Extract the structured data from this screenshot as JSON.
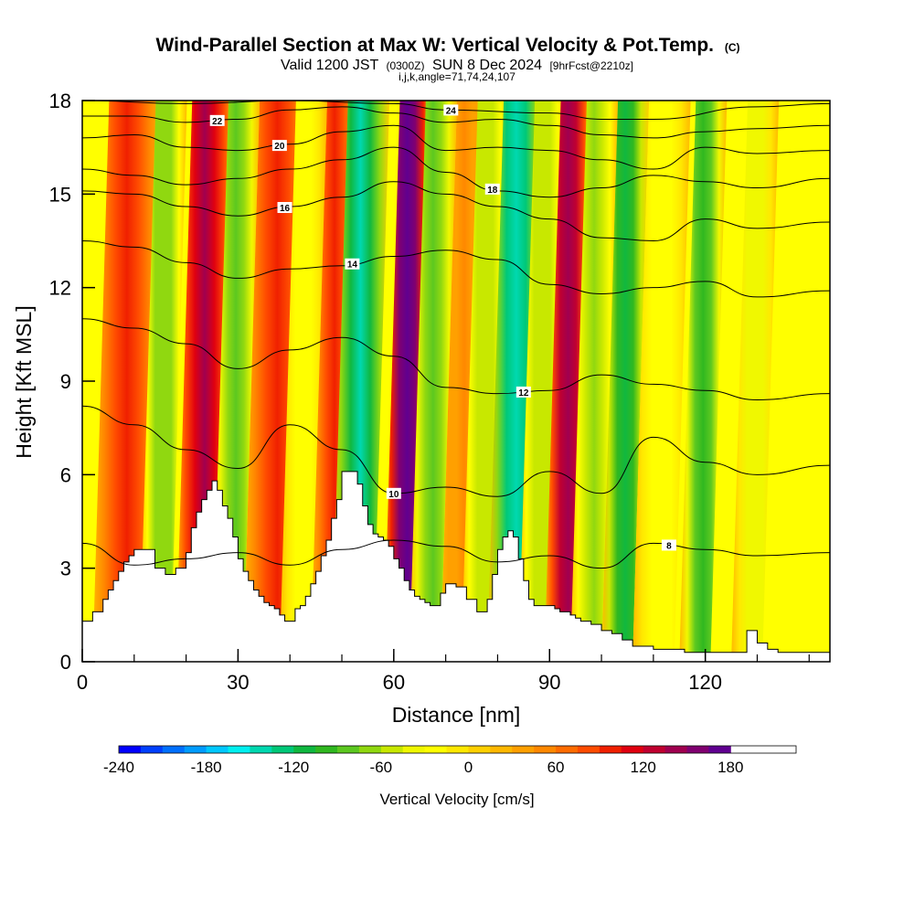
{
  "chart_data": {
    "type": "heatmap",
    "title": "Wind-Parallel Section at Max W: Vertical Velocity & Pot.Temp.",
    "title_mark": "(C)",
    "subtitle_parts": [
      "Valid 1200 JST",
      "(0300Z)",
      "SUN 8 Dec 2024",
      "[9hrFcst@2210z]"
    ],
    "subtitle2": "i,j,k,angle=71,74,24,107",
    "xlabel": "Distance [nm]",
    "ylabel": "Height [Kft MSL]",
    "xlim": [
      0,
      144
    ],
    "ylim": [
      0,
      18
    ],
    "x_ticks": [
      0,
      30,
      60,
      90,
      120
    ],
    "x_minor_step": 10,
    "y_ticks": [
      0,
      3,
      6,
      9,
      12,
      15,
      18
    ],
    "colorbar": {
      "title": "Vertical Velocity [cm/s]",
      "min": -240,
      "max": 210,
      "step": 15,
      "tick_labels": [
        "-240",
        "-180",
        "-120",
        "-60",
        "0",
        "60",
        "120",
        "180"
      ],
      "tick_values": [
        -240,
        -180,
        -120,
        -60,
        0,
        60,
        120,
        180
      ],
      "colors": [
        "#0000ff",
        "#0040ff",
        "#0070ff",
        "#009cff",
        "#00c8ff",
        "#00f0f0",
        "#00d8b0",
        "#00c878",
        "#10b840",
        "#30b820",
        "#5cc820",
        "#90d810",
        "#c8e800",
        "#f0f800",
        "#ffff00",
        "#ffe800",
        "#ffd000",
        "#ffb800",
        "#ffa000",
        "#ff8800",
        "#ff6c00",
        "#ff4c00",
        "#f02000",
        "#e00010",
        "#c00030",
        "#a00050",
        "#800070",
        "#600090"
      ]
    },
    "velocity_columns": [
      {
        "x": 7,
        "width": 5,
        "value": 95
      },
      {
        "x": 14,
        "width": 3,
        "value": -75
      },
      {
        "x": 22,
        "width": 4,
        "value": 135
      },
      {
        "x": 28,
        "width": 3,
        "value": -80
      },
      {
        "x": 36,
        "width": 5,
        "value": 100
      },
      {
        "x": 41,
        "width": 3,
        "value": -30
      },
      {
        "x": 47,
        "width": 3,
        "value": 100
      },
      {
        "x": 52,
        "width": 4,
        "value": -140
      },
      {
        "x": 61,
        "width": 3,
        "value": 175
      },
      {
        "x": 66,
        "width": 3,
        "value": -85
      },
      {
        "x": 72,
        "width": 3,
        "value": 45
      },
      {
        "x": 76,
        "width": 3,
        "value": -60
      },
      {
        "x": 82,
        "width": 4,
        "value": -150
      },
      {
        "x": 87,
        "width": 3,
        "value": -60
      },
      {
        "x": 92,
        "width": 3,
        "value": 140
      },
      {
        "x": 97,
        "width": 3,
        "value": -70
      },
      {
        "x": 103,
        "width": 3,
        "value": -110
      },
      {
        "x": 110,
        "width": 4,
        "value": -30
      },
      {
        "x": 118,
        "width": 3,
        "value": -95
      },
      {
        "x": 128,
        "width": 3,
        "value": -45
      }
    ],
    "terrain_profile": {
      "x": [
        0,
        2,
        4,
        5,
        6,
        7,
        8,
        9,
        10,
        12,
        14,
        16,
        18,
        20,
        21,
        22,
        23,
        24,
        25,
        26,
        27,
        28,
        29,
        30,
        31,
        32,
        33,
        34,
        35,
        36,
        37,
        38,
        39,
        40,
        41,
        42,
        43,
        44,
        45,
        46,
        47,
        48,
        49,
        50,
        51,
        52,
        53,
        54,
        55,
        56,
        57,
        58,
        59,
        60,
        61,
        62,
        63,
        64,
        65,
        66,
        67,
        68,
        69,
        70,
        72,
        74,
        76,
        77,
        78,
        79,
        80,
        81,
        82,
        83,
        84,
        85,
        86,
        87,
        88,
        89,
        90,
        91,
        92,
        93,
        94,
        95,
        96,
        97,
        98,
        100,
        102,
        104,
        106,
        108,
        110,
        112,
        114,
        116,
        118,
        120,
        122,
        124,
        126,
        128,
        130,
        132,
        134,
        136,
        138,
        140,
        144
      ],
      "y": [
        1.3,
        1.6,
        2.0,
        2.3,
        2.6,
        2.9,
        3.2,
        3.4,
        3.6,
        3.6,
        3.0,
        2.8,
        3.0,
        3.5,
        4.3,
        4.8,
        5.2,
        5.5,
        5.8,
        5.5,
        5.0,
        4.6,
        4.0,
        3.3,
        2.9,
        2.6,
        2.3,
        2.1,
        1.9,
        1.8,
        1.7,
        1.5,
        1.3,
        1.3,
        1.7,
        1.8,
        2.1,
        2.5,
        2.9,
        3.4,
        3.9,
        4.6,
        5.2,
        6.1,
        6.1,
        6.1,
        5.7,
        5.0,
        4.4,
        4.1,
        4.0,
        3.9,
        3.7,
        3.3,
        3.0,
        2.6,
        2.3,
        2.1,
        2.0,
        1.9,
        1.8,
        1.8,
        2.2,
        2.5,
        2.4,
        2.0,
        1.6,
        1.6,
        2.0,
        2.8,
        3.6,
        4.0,
        4.2,
        4.0,
        3.3,
        2.6,
        2.0,
        1.8,
        1.8,
        1.8,
        1.8,
        1.7,
        1.6,
        1.6,
        1.5,
        1.4,
        1.3,
        1.3,
        1.2,
        1.0,
        0.9,
        0.7,
        0.5,
        0.5,
        0.4,
        0.4,
        0.4,
        0.3,
        0.3,
        0.3,
        0.3,
        0.3,
        0.3,
        1.0,
        0.6,
        0.4,
        0.3,
        0.3,
        0.3,
        0.3,
        0.3
      ]
    },
    "isentropes": [
      {
        "level": 8,
        "label": "8",
        "label_x": 113,
        "pts": [
          [
            0,
            3.8
          ],
          [
            10,
            3.1
          ],
          [
            20,
            3.3
          ],
          [
            30,
            3.5
          ],
          [
            40,
            3.1
          ],
          [
            50,
            3.6
          ],
          [
            60,
            3.9
          ],
          [
            70,
            3.7
          ],
          [
            80,
            3.2
          ],
          [
            90,
            3.4
          ],
          [
            100,
            3.0
          ],
          [
            110,
            3.8
          ],
          [
            120,
            3.6
          ],
          [
            130,
            3.4
          ],
          [
            144,
            3.5
          ]
        ]
      },
      {
        "level": 10,
        "label": "10",
        "label_x": 60,
        "pts": [
          [
            0,
            8.2
          ],
          [
            10,
            7.6
          ],
          [
            20,
            6.8
          ],
          [
            30,
            6.2
          ],
          [
            40,
            7.6
          ],
          [
            50,
            6.8
          ],
          [
            60,
            5.4
          ],
          [
            70,
            5.6
          ],
          [
            80,
            5.3
          ],
          [
            90,
            6.1
          ],
          [
            100,
            5.4
          ],
          [
            110,
            7.2
          ],
          [
            120,
            6.4
          ],
          [
            130,
            6.0
          ],
          [
            144,
            6.3
          ]
        ]
      },
      {
        "level": 12,
        "label": "12",
        "label_x": 85,
        "pts": [
          [
            0,
            11.0
          ],
          [
            10,
            10.7
          ],
          [
            20,
            10.2
          ],
          [
            30,
            9.4
          ],
          [
            40,
            10.0
          ],
          [
            50,
            10.4
          ],
          [
            60,
            9.8
          ],
          [
            70,
            8.8
          ],
          [
            80,
            8.6
          ],
          [
            90,
            8.7
          ],
          [
            100,
            9.2
          ],
          [
            110,
            8.9
          ],
          [
            120,
            8.7
          ],
          [
            130,
            8.4
          ],
          [
            144,
            8.6
          ]
        ]
      },
      {
        "level": 14,
        "label": "14",
        "label_x": 52,
        "pts": [
          [
            0,
            13.5
          ],
          [
            10,
            13.3
          ],
          [
            20,
            12.8
          ],
          [
            30,
            12.3
          ],
          [
            40,
            12.6
          ],
          [
            50,
            12.7
          ],
          [
            60,
            13.0
          ],
          [
            70,
            13.2
          ],
          [
            80,
            12.9
          ],
          [
            90,
            12.1
          ],
          [
            100,
            11.8
          ],
          [
            110,
            12.0
          ],
          [
            120,
            12.2
          ],
          [
            130,
            11.7
          ],
          [
            144,
            11.9
          ]
        ]
      },
      {
        "level": 16,
        "label": "16",
        "label_x": 39,
        "pts": [
          [
            0,
            15.1
          ],
          [
            10,
            15.0
          ],
          [
            20,
            14.6
          ],
          [
            30,
            14.3
          ],
          [
            40,
            14.6
          ],
          [
            50,
            14.9
          ],
          [
            60,
            15.4
          ],
          [
            70,
            15.0
          ],
          [
            80,
            14.6
          ],
          [
            90,
            14.2
          ],
          [
            100,
            13.6
          ],
          [
            110,
            13.5
          ],
          [
            120,
            14.2
          ],
          [
            130,
            13.9
          ],
          [
            144,
            14.1
          ]
        ]
      },
      {
        "level": 18,
        "label": "18",
        "label_x": 79,
        "pts": [
          [
            0,
            15.8
          ],
          [
            10,
            15.6
          ],
          [
            20,
            15.3
          ],
          [
            30,
            15.5
          ],
          [
            40,
            15.8
          ],
          [
            50,
            16.1
          ],
          [
            60,
            16.5
          ],
          [
            70,
            15.7
          ],
          [
            80,
            15.1
          ],
          [
            90,
            14.9
          ],
          [
            100,
            15.2
          ],
          [
            110,
            15.6
          ],
          [
            120,
            15.4
          ],
          [
            130,
            15.2
          ],
          [
            144,
            15.5
          ]
        ]
      },
      {
        "level": 20,
        "label": "20",
        "label_x": 38,
        "pts": [
          [
            0,
            16.8
          ],
          [
            10,
            16.9
          ],
          [
            20,
            16.5
          ],
          [
            30,
            16.4
          ],
          [
            40,
            16.6
          ],
          [
            50,
            17.0
          ],
          [
            60,
            17.2
          ],
          [
            70,
            16.4
          ],
          [
            80,
            16.5
          ],
          [
            90,
            16.4
          ],
          [
            100,
            16.1
          ],
          [
            110,
            15.8
          ],
          [
            120,
            16.5
          ],
          [
            130,
            16.3
          ],
          [
            144,
            16.4
          ]
        ]
      },
      {
        "level": 22,
        "label": "22",
        "label_x": 26,
        "pts": [
          [
            0,
            17.5
          ],
          [
            10,
            17.5
          ],
          [
            20,
            17.3
          ],
          [
            30,
            17.4
          ],
          [
            40,
            17.7
          ],
          [
            50,
            17.8
          ],
          [
            60,
            17.6
          ],
          [
            70,
            17.3
          ],
          [
            80,
            17.4
          ],
          [
            90,
            17.2
          ],
          [
            100,
            16.9
          ],
          [
            110,
            16.8
          ],
          [
            120,
            17.0
          ],
          [
            130,
            17.1
          ],
          [
            144,
            17.2
          ]
        ]
      },
      {
        "level": 24,
        "label": "24",
        "label_x": 71,
        "pts": [
          [
            0,
            18.0
          ],
          [
            20,
            17.9
          ],
          [
            40,
            18.0
          ],
          [
            60,
            17.9
          ],
          [
            70,
            17.7
          ],
          [
            90,
            17.6
          ],
          [
            100,
            17.4
          ],
          [
            110,
            17.4
          ],
          [
            130,
            17.8
          ],
          [
            144,
            17.9
          ]
        ]
      }
    ],
    "grid": false,
    "legend": "bottom"
  }
}
